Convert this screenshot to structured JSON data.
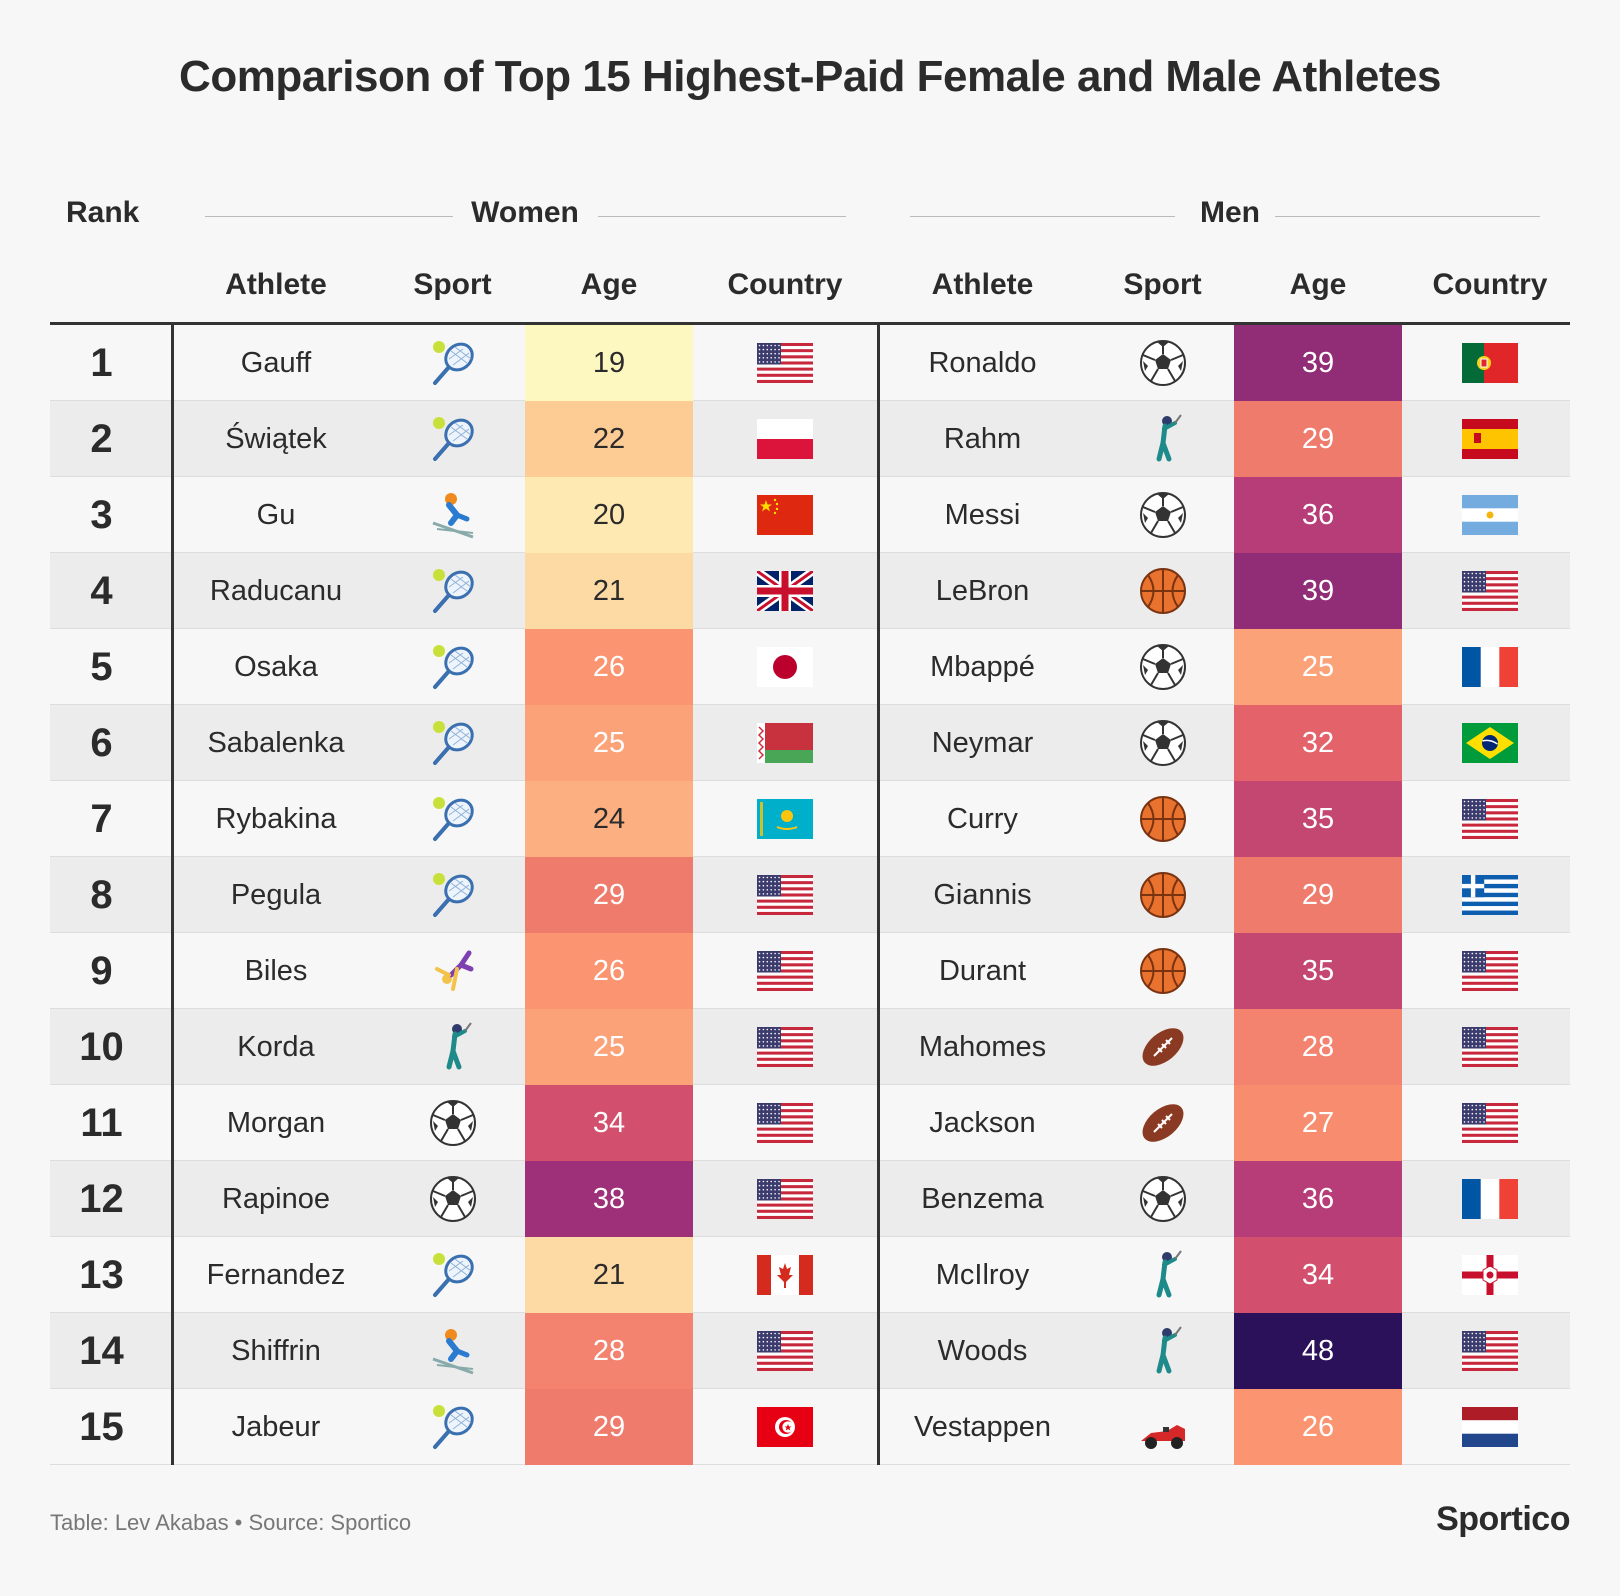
{
  "title": "Comparison of Top 15 Highest-Paid Female and Male Athletes",
  "headers": {
    "rank": "Rank",
    "women": "Women",
    "men": "Men",
    "athlete": "Athlete",
    "sport": "Sport",
    "age": "Age",
    "country": "Country"
  },
  "footer": {
    "credit": "Table: Lev Akabas • Source: Sportico",
    "brand": "Sportico"
  },
  "age_color_scale": {
    "type": "sequential",
    "stops": [
      {
        "age": 19,
        "color": "#fdf8c0"
      },
      {
        "age": 22,
        "color": "#fdcb94"
      },
      {
        "age": 26,
        "color": "#fb9470"
      },
      {
        "age": 33,
        "color": "#e05a68"
      },
      {
        "age": 37,
        "color": "#a8337c"
      },
      {
        "age": 48,
        "color": "#2a1159"
      }
    ]
  },
  "chart_data": {
    "type": "table",
    "columns": [
      "Rank",
      "Women Athlete",
      "Women Sport",
      "Women Age",
      "Women Country",
      "Men Athlete",
      "Men Sport",
      "Men Age",
      "Men Country"
    ],
    "rows": [
      {
        "rank": "1",
        "women": {
          "athlete": "Gauff",
          "sport": "tennis",
          "age": 19,
          "country": "us"
        },
        "men": {
          "athlete": "Ronaldo",
          "sport": "soccer",
          "age": 39,
          "country": "portugal"
        }
      },
      {
        "rank": "2",
        "women": {
          "athlete": "Świątek",
          "sport": "tennis",
          "age": 22,
          "country": "poland"
        },
        "men": {
          "athlete": "Rahm",
          "sport": "golf",
          "age": 29,
          "country": "spain"
        }
      },
      {
        "rank": "3",
        "women": {
          "athlete": "Gu",
          "sport": "skiing",
          "age": 20,
          "country": "china"
        },
        "men": {
          "athlete": "Messi",
          "sport": "soccer",
          "age": 36,
          "country": "argentina"
        }
      },
      {
        "rank": "4",
        "women": {
          "athlete": "Raducanu",
          "sport": "tennis",
          "age": 21,
          "country": "uk"
        },
        "men": {
          "athlete": "LeBron",
          "sport": "basketball",
          "age": 39,
          "country": "us"
        }
      },
      {
        "rank": "5",
        "women": {
          "athlete": "Osaka",
          "sport": "tennis",
          "age": 26,
          "country": "japan"
        },
        "men": {
          "athlete": "Mbappé",
          "sport": "soccer",
          "age": 25,
          "country": "france"
        }
      },
      {
        "rank": "6",
        "women": {
          "athlete": "Sabalenka",
          "sport": "tennis",
          "age": 25,
          "country": "belarus"
        },
        "men": {
          "athlete": "Neymar",
          "sport": "soccer",
          "age": 32,
          "country": "brazil"
        }
      },
      {
        "rank": "7",
        "women": {
          "athlete": "Rybakina",
          "sport": "tennis",
          "age": 24,
          "country": "kazakhstan"
        },
        "men": {
          "athlete": "Curry",
          "sport": "basketball",
          "age": 35,
          "country": "us"
        }
      },
      {
        "rank": "8",
        "women": {
          "athlete": "Pegula",
          "sport": "tennis",
          "age": 29,
          "country": "us"
        },
        "men": {
          "athlete": "Giannis",
          "sport": "basketball",
          "age": 29,
          "country": "greece"
        }
      },
      {
        "rank": "9",
        "women": {
          "athlete": "Biles",
          "sport": "gymnastics",
          "age": 26,
          "country": "us"
        },
        "men": {
          "athlete": "Durant",
          "sport": "basketball",
          "age": 35,
          "country": "us"
        }
      },
      {
        "rank": "10",
        "women": {
          "athlete": "Korda",
          "sport": "golf",
          "age": 25,
          "country": "us"
        },
        "men": {
          "athlete": "Mahomes",
          "sport": "football",
          "age": 28,
          "country": "us"
        }
      },
      {
        "rank": "11",
        "women": {
          "athlete": "Morgan",
          "sport": "soccer",
          "age": 34,
          "country": "us"
        },
        "men": {
          "athlete": "Jackson",
          "sport": "football",
          "age": 27,
          "country": "us"
        }
      },
      {
        "rank": "12",
        "women": {
          "athlete": "Rapinoe",
          "sport": "soccer",
          "age": 38,
          "country": "us"
        },
        "men": {
          "athlete": "Benzema",
          "sport": "soccer",
          "age": 36,
          "country": "france"
        }
      },
      {
        "rank": "13",
        "women": {
          "athlete": "Fernandez",
          "sport": "tennis",
          "age": 21,
          "country": "canada"
        },
        "men": {
          "athlete": "McIlroy",
          "sport": "golf",
          "age": 34,
          "country": "northern-ireland"
        }
      },
      {
        "rank": "14",
        "women": {
          "athlete": "Shiffrin",
          "sport": "skiing",
          "age": 28,
          "country": "us"
        },
        "men": {
          "athlete": "Woods",
          "sport": "golf",
          "age": 48,
          "country": "us"
        }
      },
      {
        "rank": "15",
        "women": {
          "athlete": "Jabeur",
          "sport": "tennis",
          "age": 29,
          "country": "tunisia"
        },
        "men": {
          "athlete": "Vestappen",
          "sport": "racing",
          "age": 26,
          "country": "netherlands"
        }
      }
    ]
  }
}
